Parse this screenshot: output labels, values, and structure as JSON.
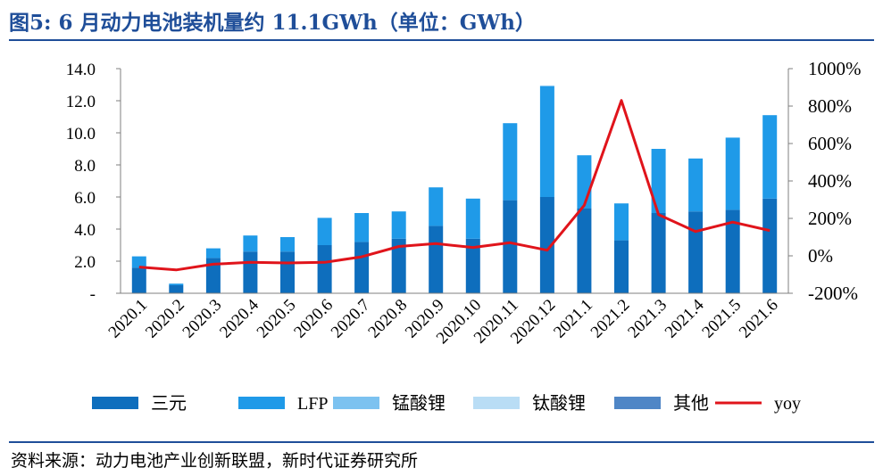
{
  "figure": {
    "title": "图5:    6 月动力电池装机量约 11.1GWh（单位：GWh）",
    "source": "资料来源：动力电池产业创新联盟，新时代证券研究所"
  },
  "colors": {
    "title": "#1f4e99",
    "ncm": "#0e6ebd",
    "lfp": "#1f9ae8",
    "lmo": "#7cc2f0",
    "lto": "#b9ddf5",
    "other": "#4f86c6",
    "yoy": "#e0141b"
  },
  "chart_data": {
    "type": "bar",
    "stacked": true,
    "categories": [
      "2020.1",
      "2020.2",
      "2020.3",
      "2020.4",
      "2020.5",
      "2020.6",
      "2020.7",
      "2020.8",
      "2020.9",
      "2020.10",
      "2020.11",
      "2020.12",
      "2021.1",
      "2021.2",
      "2021.3",
      "2021.4",
      "2021.5",
      "2021.6"
    ],
    "series": [
      {
        "name": "三元",
        "values": [
          1.6,
          0.5,
          2.2,
          2.6,
          2.6,
          3.0,
          3.2,
          3.4,
          4.2,
          3.4,
          5.8,
          6.0,
          5.3,
          3.3,
          5.0,
          5.1,
          5.2,
          5.9
        ]
      },
      {
        "name": "LFP",
        "values": [
          0.7,
          0.1,
          0.6,
          1.0,
          0.9,
          1.7,
          1.8,
          1.7,
          2.4,
          2.5,
          4.8,
          6.9,
          3.3,
          2.3,
          4.0,
          3.3,
          4.5,
          5.2
        ]
      },
      {
        "name": "锰酸锂",
        "values": [
          0,
          0,
          0,
          0,
          0,
          0,
          0,
          0,
          0,
          0,
          0,
          0.05,
          0,
          0,
          0,
          0,
          0,
          0
        ]
      },
      {
        "name": "钛酸锂",
        "values": [
          0,
          0,
          0,
          0,
          0,
          0,
          0,
          0,
          0,
          0,
          0,
          0,
          0,
          0,
          0,
          0,
          0,
          0
        ]
      },
      {
        "name": "其他",
        "values": [
          0,
          0,
          0,
          0,
          0,
          0,
          0,
          0,
          0,
          0,
          0,
          0,
          0,
          0,
          0,
          0,
          0,
          0
        ]
      }
    ],
    "line_series": {
      "name": "yoy",
      "axis": "right",
      "values": [
        -60,
        -75,
        -45,
        -35,
        -38,
        -35,
        -5,
        50,
        65,
        45,
        70,
        30,
        270,
        830,
        220,
        130,
        180,
        135
      ]
    },
    "left_axis": {
      "ylim": [
        0,
        14
      ],
      "ticks": [
        "-",
        "2.0",
        "4.0",
        "6.0",
        "8.0",
        "10.0",
        "12.0",
        "14.0"
      ]
    },
    "right_axis": {
      "ylim": [
        -200,
        1000
      ],
      "ticks": [
        "-200%",
        "0%",
        "200%",
        "400%",
        "600%",
        "800%",
        "1000%"
      ]
    },
    "legend": {
      "placement": "bottom",
      "labels": [
        "三元",
        "LFP",
        "锰酸锂",
        "钛酸锂",
        "其他",
        "yoy"
      ]
    },
    "grid": false
  }
}
